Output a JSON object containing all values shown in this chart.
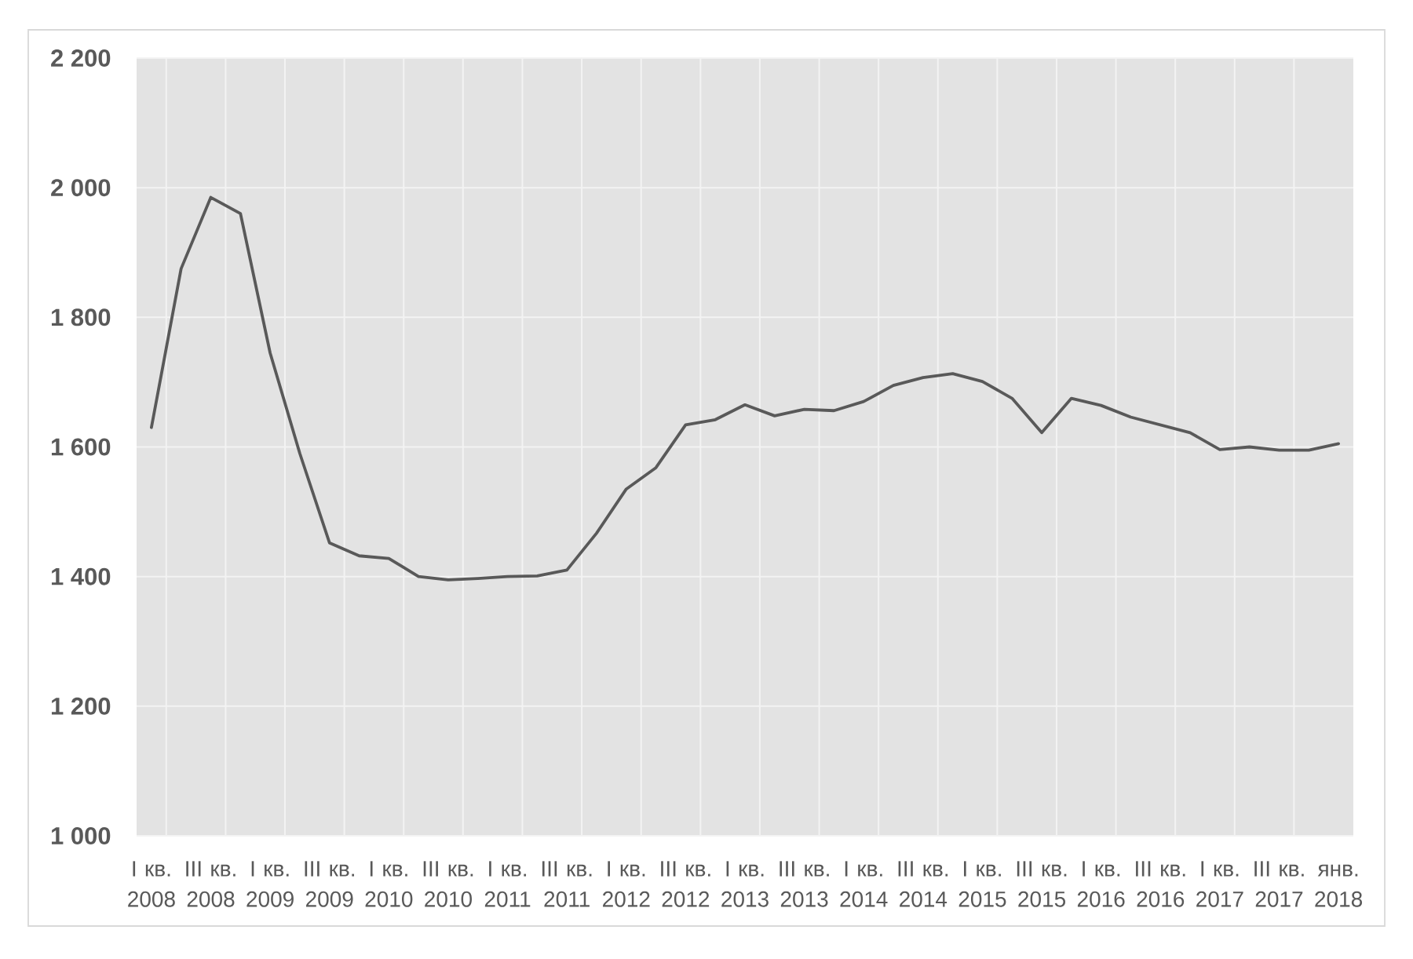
{
  "chart_data": {
    "type": "line",
    "categories": [
      "I кв. 2008",
      null,
      "III кв. 2008",
      null,
      "I кв. 2009",
      null,
      "III кв. 2009",
      null,
      "I кв. 2010",
      null,
      "III кв. 2010",
      null,
      "I кв. 2011",
      null,
      "III кв. 2011",
      null,
      "I кв. 2012",
      null,
      "III кв. 2012",
      null,
      "I кв. 2013",
      null,
      "III кв. 2013",
      null,
      "I кв. 2014",
      null,
      "III кв. 2014",
      null,
      "I кв. 2015",
      null,
      "III кв. 2015",
      null,
      "I кв. 2016",
      null,
      "III кв. 2016",
      null,
      "I кв. 2017",
      null,
      "III кв. 2017",
      null,
      "янв. 2018"
    ],
    "values": [
      1630,
      1875,
      1985,
      1960,
      1745,
      1590,
      1452,
      1432,
      1428,
      1400,
      1395,
      1397,
      1400,
      1401,
      1410,
      1467,
      1535,
      1568,
      1634,
      1642,
      1665,
      1648,
      1658,
      1656,
      1670,
      1695,
      1707,
      1713,
      1701,
      1675,
      1622,
      1675,
      1664,
      1646,
      1634,
      1622,
      1596,
      1600,
      1595,
      1595,
      1605
    ],
    "color": "#595959",
    "ylim": [
      1000,
      2200
    ],
    "yticks": [
      {
        "value": 1000,
        "label": "1 000"
      },
      {
        "value": 1200,
        "label": "1 200"
      },
      {
        "value": 1400,
        "label": "1 400"
      },
      {
        "value": 1600,
        "label": "1 600"
      },
      {
        "value": 1800,
        "label": "1 800"
      },
      {
        "value": 2000,
        "label": "2 000"
      },
      {
        "value": 2200,
        "label": "2 200"
      }
    ],
    "grid": true
  }
}
